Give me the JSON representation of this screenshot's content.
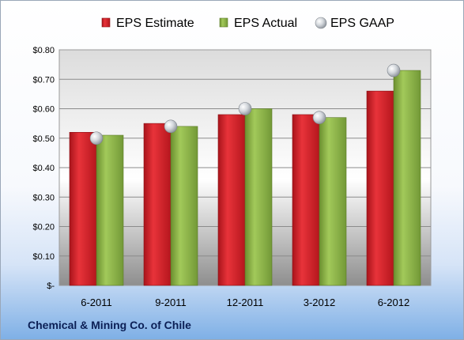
{
  "company": "Chemical & Mining Co. of Chile",
  "chart_data": {
    "type": "bar",
    "categories": [
      "6-2011",
      "9-2011",
      "12-2011",
      "3-2012",
      "6-2012"
    ],
    "series": [
      {
        "name": "EPS Estimate",
        "kind": "bar",
        "color": "#d9232b",
        "values": [
          0.52,
          0.55,
          0.58,
          0.58,
          0.66
        ]
      },
      {
        "name": "EPS Actual",
        "kind": "bar",
        "color": "#8fb84a",
        "values": [
          0.51,
          0.54,
          0.6,
          0.57,
          0.73
        ]
      },
      {
        "name": "EPS GAAP",
        "kind": "marker",
        "color": "#c8cdd4",
        "values": [
          0.5,
          0.54,
          0.6,
          0.57,
          0.73
        ]
      }
    ],
    "ylim": [
      0,
      0.8
    ],
    "yticks": [
      0,
      0.1,
      0.2,
      0.3,
      0.4,
      0.5,
      0.6,
      0.7,
      0.8
    ],
    "ytick_labels": [
      "$-",
      "$0.10",
      "$0.20",
      "$0.30",
      "$0.40",
      "$0.50",
      "$0.60",
      "$0.70",
      "$0.80"
    ],
    "legend_position": "top",
    "grid": true
  }
}
